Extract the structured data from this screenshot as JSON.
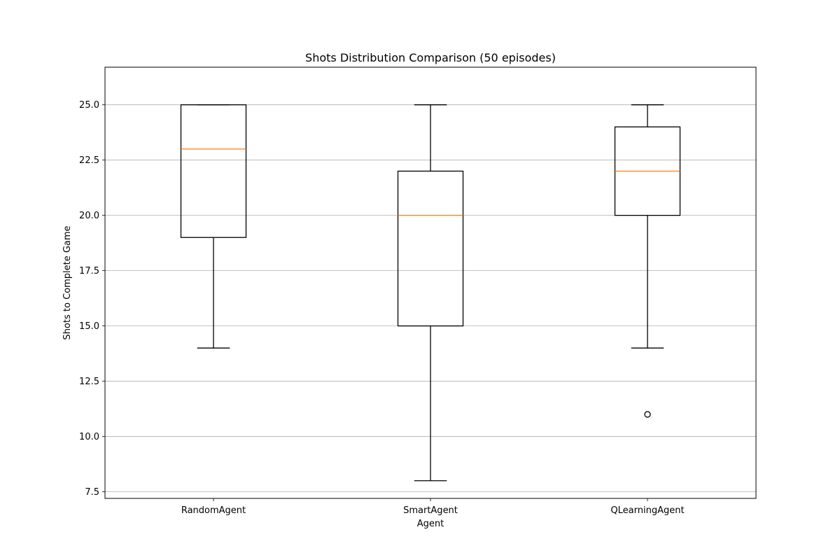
{
  "chart_data": {
    "type": "boxplot",
    "title": "Shots Distribution Comparison (50 episodes)",
    "xlabel": "Agent",
    "ylabel": "Shots to Complete Game",
    "categories": [
      "RandomAgent",
      "SmartAgent",
      "QLearningAgent"
    ],
    "boxes": [
      {
        "category": "RandomAgent",
        "whisker_low": 14,
        "q1": 19,
        "median": 23,
        "q3": 25,
        "whisker_high": 25,
        "outliers": []
      },
      {
        "category": "SmartAgent",
        "whisker_low": 8,
        "q1": 15,
        "median": 20,
        "q3": 22,
        "whisker_high": 25,
        "outliers": []
      },
      {
        "category": "QLearningAgent",
        "whisker_low": 14,
        "q1": 20,
        "median": 22,
        "q3": 24,
        "whisker_high": 25,
        "outliers": [
          11
        ]
      }
    ],
    "ylim": [
      7.2,
      26.7
    ],
    "yticks": [
      7.5,
      10.0,
      12.5,
      15.0,
      17.5,
      20.0,
      22.5,
      25.0
    ],
    "ytick_labels": [
      "7.5",
      "10.0",
      "12.5",
      "15.0",
      "17.5",
      "20.0",
      "22.5",
      "25.0"
    ],
    "grid": "y",
    "colors": {
      "box": "#000000",
      "median": "#ff7f0e",
      "grid": "#b0b0b0"
    }
  }
}
